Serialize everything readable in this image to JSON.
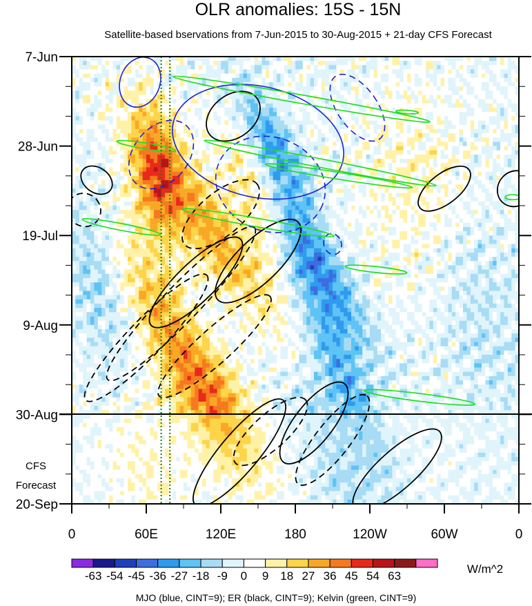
{
  "chart_data": {
    "type": "heatmap",
    "title": "OLR anomalies: 15S - 15N",
    "subtitle": "Satellite-based bservations from 7-Jun-2015 to 30-Aug-2015 + 21-day CFS Forecast",
    "xaxis": {
      "tick_labels": [
        "0",
        "60E",
        "120E",
        "180",
        "120W",
        "60W",
        "0"
      ],
      "tick_values_deg_east": [
        0,
        60,
        120,
        180,
        240,
        300,
        360
      ]
    },
    "yaxis": {
      "tick_labels": [
        "7-Jun",
        "28-Jun",
        "19-Jul",
        "9-Aug",
        "30-Aug",
        "20-Sep"
      ],
      "tick_values_day": [
        0,
        21,
        42,
        63,
        84,
        105
      ]
    },
    "forecast_label": [
      "CFS",
      "Forecast"
    ],
    "forecast_start_label": "30-Aug",
    "colorbar": {
      "unit": "W/m^2",
      "levels": [
        "-63",
        "-54",
        "-45",
        "-36",
        "-27",
        "-18",
        "-9",
        "0",
        "9",
        "18",
        "27",
        "36",
        "45",
        "54",
        "63"
      ],
      "colors": [
        "#8a2be2",
        "#1a1a8c",
        "#1f3fbf",
        "#3d6ee0",
        "#2f9bef",
        "#5ec3f5",
        "#a8dcf5",
        "#e0f4fb",
        "#ffffff",
        "#fff2a8",
        "#fdd44a",
        "#f9a826",
        "#f57a1f",
        "#e82a1a",
        "#b8141a",
        "#8c1a1a",
        "#ff6ec7"
      ]
    },
    "footer": "MJO (blue, CINT=9); ER (black, CINT=9); Kelvin (green, CINT=9)",
    "contour_colors": {
      "mjo": "#1f1fd6",
      "er": "#000000",
      "kelvin": "#22dd22",
      "reference": "#1a7a1a"
    },
    "reference_lines_deg_east": [
      72,
      79
    ]
  }
}
